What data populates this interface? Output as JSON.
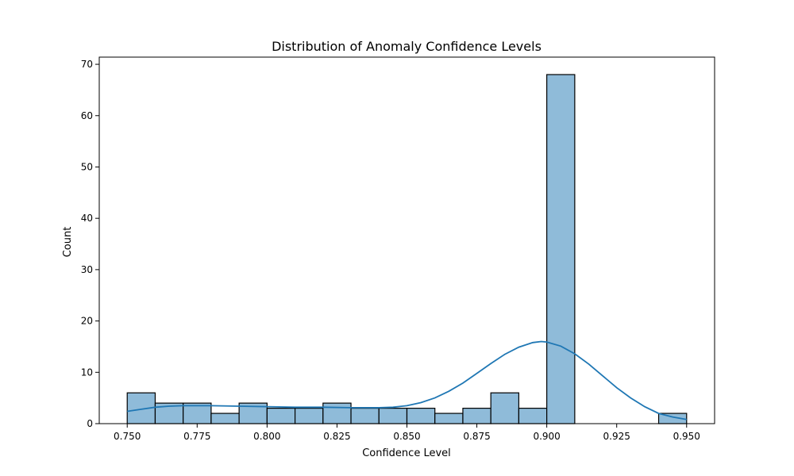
{
  "chart_data": {
    "type": "bar",
    "title": "Distribution of Anomaly Confidence Levels",
    "xlabel": "Confidence Level",
    "ylabel": "Count",
    "xlim": [
      0.74,
      0.96
    ],
    "ylim": [
      0,
      71.4
    ],
    "x_ticks": [
      "0.750",
      "0.775",
      "0.800",
      "0.825",
      "0.850",
      "0.875",
      "0.900",
      "0.925",
      "0.950"
    ],
    "x_tick_values": [
      0.75,
      0.775,
      0.8,
      0.825,
      0.85,
      0.875,
      0.9,
      0.925,
      0.95
    ],
    "y_ticks": [
      0,
      10,
      20,
      30,
      40,
      50,
      60,
      70
    ],
    "bins": [
      {
        "start": 0.75,
        "end": 0.76,
        "count": 6
      },
      {
        "start": 0.76,
        "end": 0.77,
        "count": 4
      },
      {
        "start": 0.77,
        "end": 0.78,
        "count": 4
      },
      {
        "start": 0.78,
        "end": 0.79,
        "count": 2
      },
      {
        "start": 0.79,
        "end": 0.8,
        "count": 4
      },
      {
        "start": 0.8,
        "end": 0.81,
        "count": 3
      },
      {
        "start": 0.81,
        "end": 0.82,
        "count": 3
      },
      {
        "start": 0.82,
        "end": 0.83,
        "count": 4
      },
      {
        "start": 0.83,
        "end": 0.84,
        "count": 3
      },
      {
        "start": 0.84,
        "end": 0.85,
        "count": 3
      },
      {
        "start": 0.85,
        "end": 0.86,
        "count": 3
      },
      {
        "start": 0.86,
        "end": 0.87,
        "count": 2
      },
      {
        "start": 0.87,
        "end": 0.88,
        "count": 3
      },
      {
        "start": 0.88,
        "end": 0.89,
        "count": 6
      },
      {
        "start": 0.89,
        "end": 0.9,
        "count": 3
      },
      {
        "start": 0.9,
        "end": 0.91,
        "count": 68
      },
      {
        "start": 0.91,
        "end": 0.92,
        "count": 0
      },
      {
        "start": 0.92,
        "end": 0.93,
        "count": 0
      },
      {
        "start": 0.93,
        "end": 0.94,
        "count": 0
      },
      {
        "start": 0.94,
        "end": 0.95,
        "count": 2
      }
    ],
    "kde": {
      "x": [
        0.75,
        0.755,
        0.76,
        0.765,
        0.77,
        0.775,
        0.78,
        0.79,
        0.8,
        0.81,
        0.82,
        0.83,
        0.84,
        0.845,
        0.85,
        0.855,
        0.86,
        0.865,
        0.87,
        0.875,
        0.88,
        0.885,
        0.89,
        0.895,
        0.898,
        0.9,
        0.905,
        0.91,
        0.915,
        0.92,
        0.925,
        0.93,
        0.935,
        0.94,
        0.945,
        0.95
      ],
      "y": [
        2.4,
        2.8,
        3.2,
        3.4,
        3.5,
        3.5,
        3.5,
        3.4,
        3.3,
        3.2,
        3.2,
        3.1,
        3.1,
        3.2,
        3.5,
        4.1,
        5.0,
        6.3,
        7.9,
        9.8,
        11.7,
        13.5,
        14.9,
        15.8,
        16.0,
        15.9,
        15.1,
        13.6,
        11.6,
        9.3,
        7.0,
        5.0,
        3.3,
        2.0,
        1.3,
        0.8
      ]
    },
    "grid": false,
    "legend": "none",
    "bar_color": "#8fbbd9",
    "bar_edge_color": "#000000",
    "kde_color": "#1f77b4"
  }
}
